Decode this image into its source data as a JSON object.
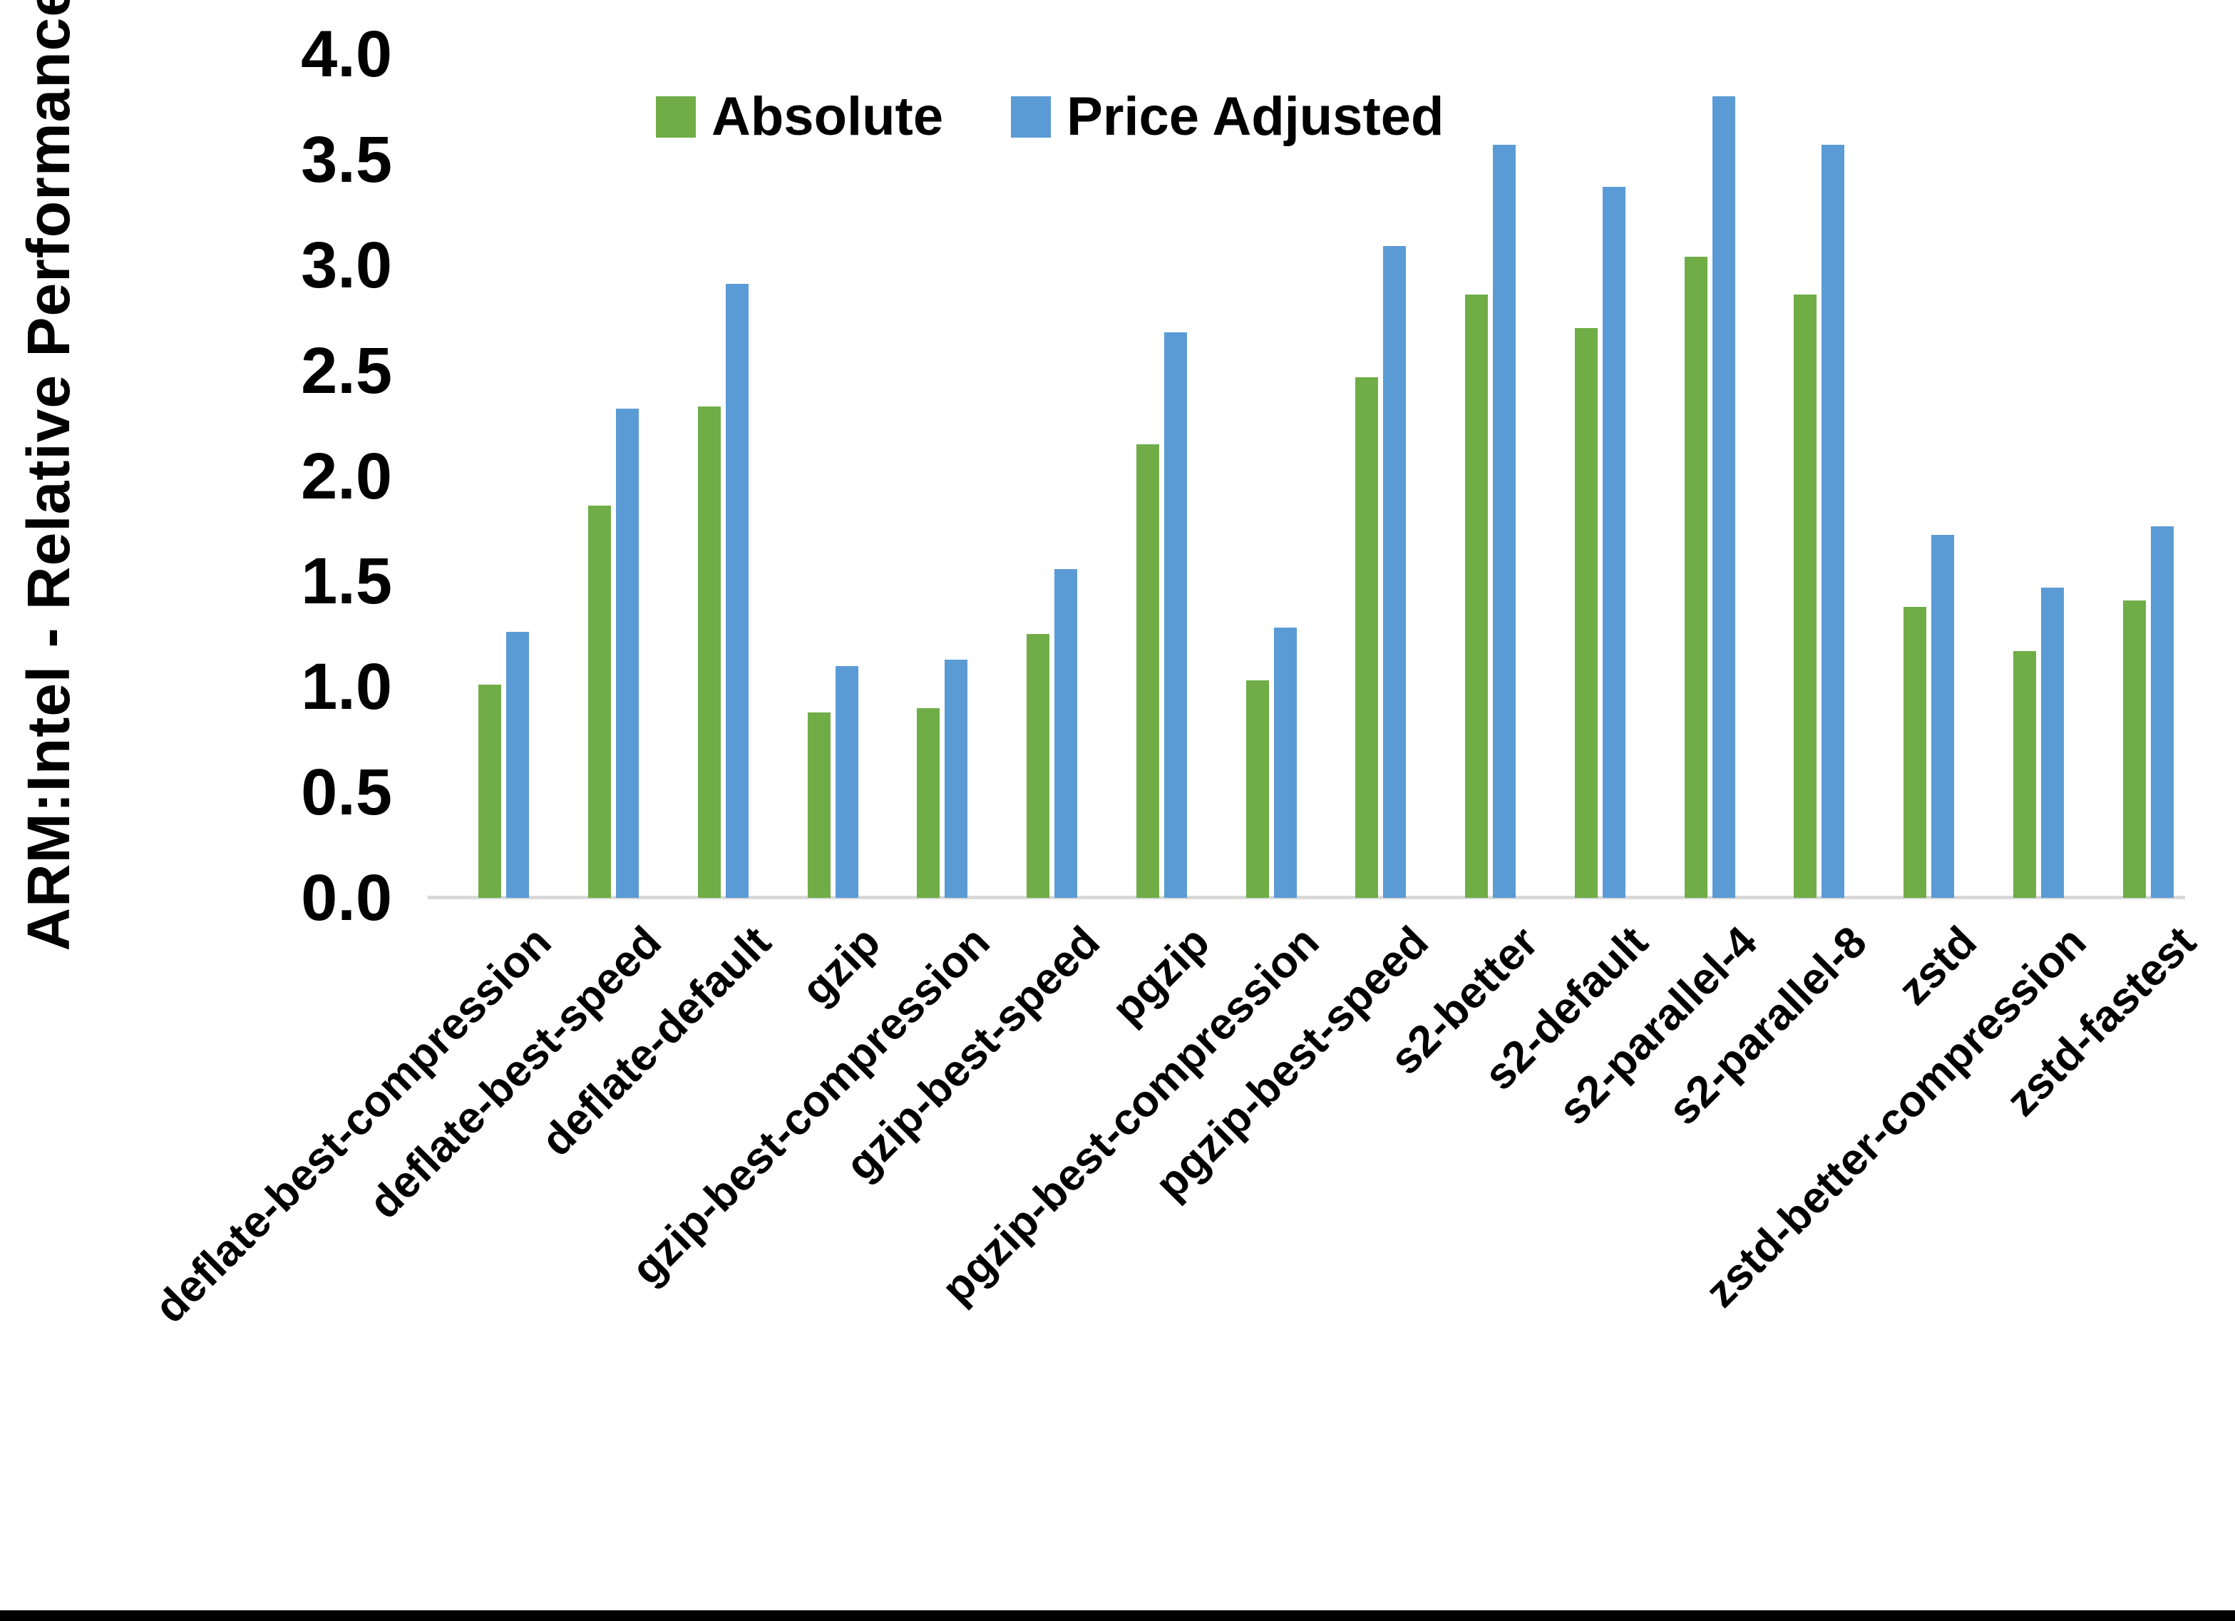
{
  "chart_data": {
    "type": "bar",
    "title": "",
    "ylabel": "ARM:Intel - Relative Performance",
    "xlabel": "",
    "ylim": [
      0.0,
      4.0
    ],
    "ytick_step": 0.5,
    "yticks": [
      "0.0",
      "0.5",
      "1.0",
      "1.5",
      "2.0",
      "2.5",
      "3.0",
      "3.5",
      "4.0"
    ],
    "grid": "off",
    "legend_position": "top-center",
    "categories": [
      "deflate-best-compression",
      "deflate-best-speed",
      "deflate-default",
      "gzip",
      "gzip-best-compression",
      "gzip-best-speed",
      "pgzip",
      "pgzip-best-compression",
      "pgzip-best-speed",
      "s2-better",
      "s2-default",
      "s2-parallel-4",
      "s2-parallel-8",
      "zstd",
      "zstd-better-compression",
      "zstd-fastest"
    ],
    "series": [
      {
        "name": "Absolute",
        "color": "#70AD47",
        "values": [
          1.01,
          1.86,
          2.33,
          0.88,
          0.9,
          1.25,
          2.15,
          1.03,
          2.47,
          2.86,
          2.7,
          3.04,
          2.86,
          1.38,
          1.17,
          1.41
        ]
      },
      {
        "name": "Price Adjusted",
        "color": "#5B9BD5",
        "values": [
          1.26,
          2.32,
          2.91,
          1.1,
          1.13,
          1.56,
          2.68,
          1.28,
          3.09,
          3.57,
          3.37,
          3.8,
          3.57,
          1.72,
          1.47,
          1.76
        ]
      }
    ],
    "axis_line_color": "#D9D9D9",
    "text_color": "#000000"
  }
}
